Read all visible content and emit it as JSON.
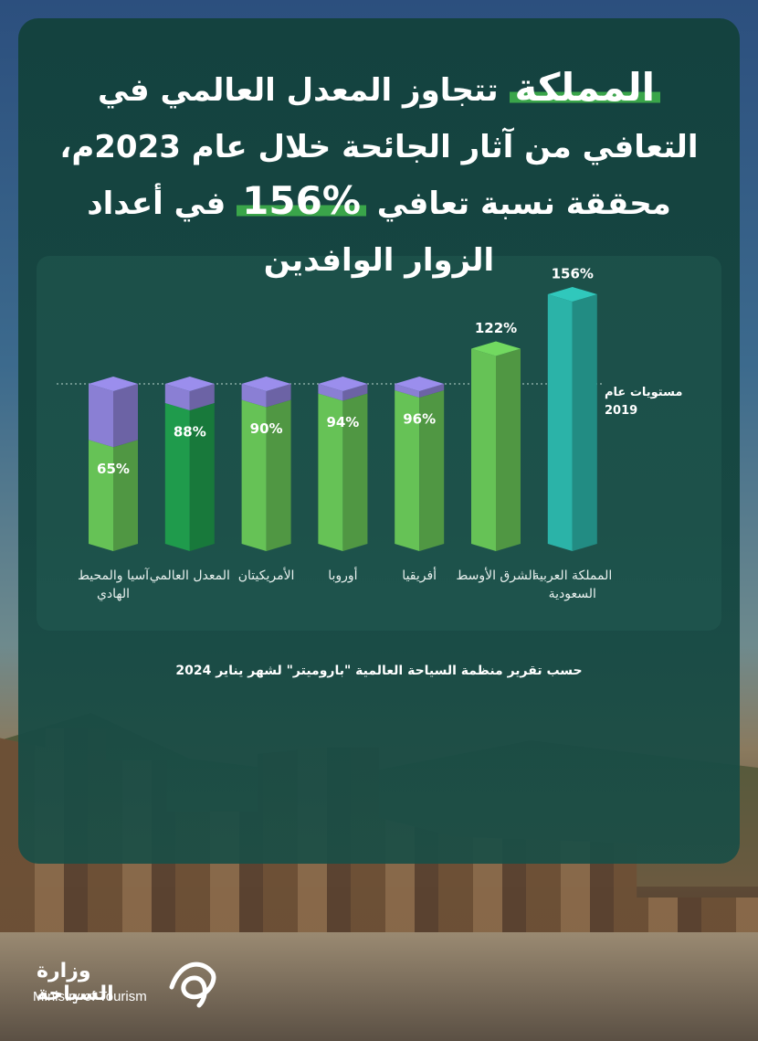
{
  "header": {
    "highlight_1": "المملكة",
    "text_1": "تتجاوز المعدل العالمي في التعافي من آثار الجائحة خلال عام 2023م، محققة نسبة تعافي",
    "highlight_2": "156%",
    "text_2": "في أعداد الزوار الوافدين"
  },
  "chart_data": {
    "type": "bar",
    "categories": [
      "آسيا والمحيط الهادي",
      "المعدل العالمي",
      "الأمريكيتان",
      "أوروبا",
      "أفريقيا",
      "الشرق الأوسط",
      "المملكة العربية السعودية"
    ],
    "values": [
      65,
      88,
      90,
      94,
      96,
      122,
      156
    ],
    "value_labels": [
      "65%",
      "88%",
      "90%",
      "94%",
      "96%",
      "122%",
      "156%"
    ],
    "colors": [
      "#66c256",
      "#1f9b4c",
      "#66c256",
      "#66c256",
      "#66c256",
      "#66c256",
      "#2bb3a8"
    ],
    "reference_line": {
      "value": 100,
      "label": "مستويات عام 2019",
      "color": "#8a7fd4"
    }
  },
  "source": "حسب تقرير منظمة السياحة العالمية \"باروميتر\" لشهر يناير 2024",
  "logo": {
    "arabic": "وزارة السياحة",
    "english": "Ministry of Tourism"
  }
}
